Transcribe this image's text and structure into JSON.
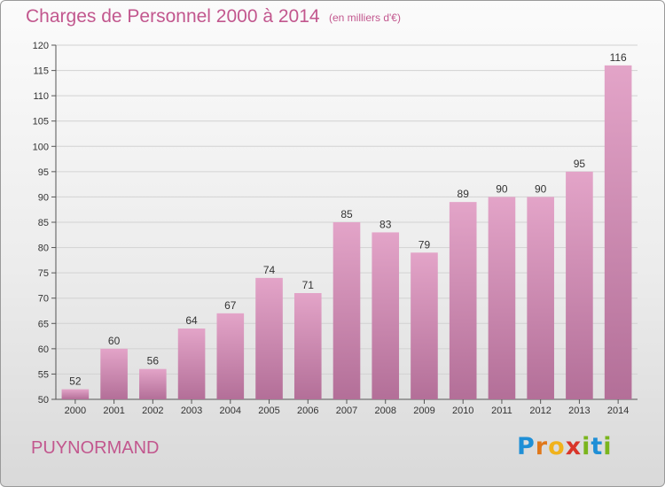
{
  "chart_data": {
    "type": "bar",
    "title": "Charges de Personnel 2000 à 2014",
    "subtitle": "(en milliers d'€)",
    "categories": [
      "2000",
      "2001",
      "2002",
      "2003",
      "2004",
      "2005",
      "2006",
      "2007",
      "2008",
      "2009",
      "2010",
      "2011",
      "2012",
      "2013",
      "2014"
    ],
    "values": [
      52,
      60,
      56,
      64,
      67,
      74,
      71,
      85,
      83,
      79,
      89,
      90,
      90,
      95,
      116
    ],
    "ylim": [
      50,
      120
    ],
    "yticks": [
      50,
      55,
      60,
      65,
      70,
      75,
      80,
      85,
      90,
      95,
      100,
      105,
      110,
      115,
      120
    ],
    "grid": true,
    "bar_color_top": "#e3a4c8",
    "bar_color_bottom": "#b36f98"
  },
  "footer": {
    "commune": "PUYNORMAND",
    "logo_letters": [
      "P",
      "r",
      "o",
      "x",
      "i",
      "t",
      "i"
    ],
    "logo_colors": [
      "#1f8fd6",
      "#e0781b",
      "#f0b21c",
      "#d9352a",
      "#7ab51d",
      "#1f8fd6",
      "#7ab51d"
    ]
  },
  "colors": {
    "accent": "#c2578e"
  }
}
